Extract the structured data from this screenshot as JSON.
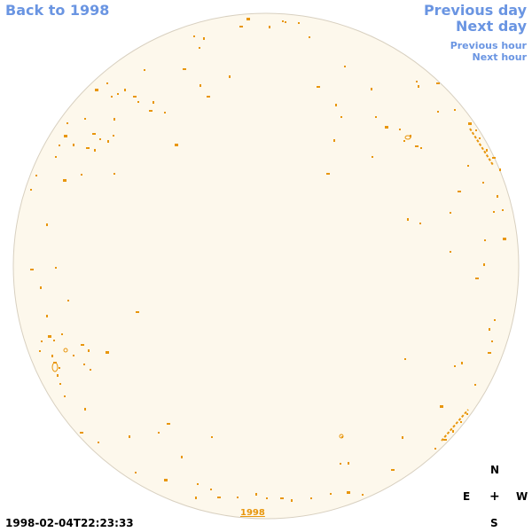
{
  "nav": {
    "back": "Back to 1998",
    "previous_day": "Previous day",
    "next_day": "Next day",
    "previous_hour": "Previous hour",
    "next_hour": "Next hour"
  },
  "compass": {
    "n": "N",
    "e": "E",
    "center": "+",
    "w": "W",
    "s": "S"
  },
  "timestamp": "1998-02-04T22:23:33",
  "year_label": "1998",
  "colors": {
    "link": "#6a95e2",
    "disk_fill": "#fdf8ec",
    "disk_stroke": "#d8d0c0",
    "feature": "#e8960c"
  }
}
